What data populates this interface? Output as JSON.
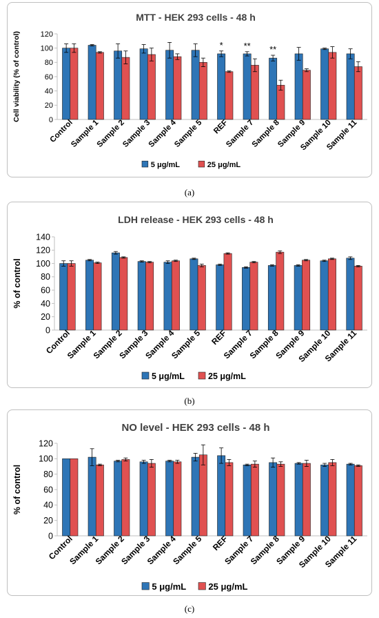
{
  "colors": {
    "series1": "#2e75b6",
    "series2": "#e05151",
    "axis": "#bfbfbf",
    "grid": "#d9d9d9"
  },
  "captions": [
    "(a)",
    "(b)",
    "(c)"
  ],
  "chart_data": [
    {
      "type": "bar",
      "title": "MTT - HEK 293 cells - 48 h",
      "xlabel": "",
      "ylabel": "Cell viability (% of control)",
      "ylim": [
        0,
        120
      ],
      "yticks": [
        0,
        20,
        40,
        60,
        80,
        100,
        120
      ],
      "grid": false,
      "legend_position": "bottom",
      "categories": [
        "Control",
        "Sample 1",
        "Sample 2",
        "Sample 3",
        "Sample 4",
        "Sample 5",
        "REF",
        "Sample 7",
        "Sample 8",
        "Sample 9",
        "Sample 10",
        "Sample 11"
      ],
      "series": [
        {
          "name": "5 μg/mL",
          "values": [
            100,
            104,
            96,
            99,
            97,
            97,
            92,
            92,
            86,
            92,
            99,
            92
          ],
          "errors": [
            6,
            1,
            10,
            6,
            11,
            9,
            4,
            3,
            4,
            9,
            1,
            7
          ]
        },
        {
          "name": "25 μg/mL",
          "values": [
            100,
            94,
            87,
            91,
            88,
            80,
            67,
            76,
            48,
            69,
            94,
            74
          ],
          "errors": [
            6,
            1,
            9,
            9,
            4,
            6,
            1,
            9,
            7,
            2,
            8,
            7
          ]
        }
      ],
      "annotations": [
        {
          "category": "REF",
          "text": "*"
        },
        {
          "category": "Sample 7",
          "text": "**"
        },
        {
          "category": "Sample 8",
          "text": "**"
        }
      ]
    },
    {
      "type": "bar",
      "title": "LDH release - HEK 293 cells - 48 h",
      "xlabel": "",
      "ylabel": "% of control",
      "ylim": [
        0,
        140
      ],
      "yticks": [
        0,
        20,
        40,
        60,
        80,
        100,
        120,
        140
      ],
      "grid": false,
      "legend_position": "bottom",
      "categories": [
        "Control",
        "Sample 1",
        "Sample 2",
        "Sample 3",
        "Sample 4",
        "Sample 5",
        "REF",
        "Sample 7",
        "Sample 8",
        "Sample 9",
        "Sample 10",
        "Sample 11"
      ],
      "series": [
        {
          "name": "5 μg/mL",
          "values": [
            100,
            105,
            116,
            103,
            102,
            107,
            98,
            94,
            97,
            97,
            104,
            108
          ],
          "errors": [
            4,
            1,
            2,
            1,
            2,
            1,
            1,
            1,
            1,
            1,
            1,
            2
          ]
        },
        {
          "name": "25 μg/mL",
          "values": [
            100,
            101,
            109,
            102,
            104,
            97,
            115,
            102,
            117,
            105,
            107,
            96
          ],
          "errors": [
            4,
            1,
            1,
            1,
            1,
            2,
            1,
            1,
            2,
            1,
            1,
            1
          ]
        }
      ],
      "annotations": []
    },
    {
      "type": "bar",
      "title": "NO level - HEK 293 cells - 48 h",
      "xlabel": "",
      "ylabel": "% of control",
      "ylim": [
        0,
        120
      ],
      "yticks": [
        0,
        20,
        40,
        60,
        80,
        100,
        120
      ],
      "grid": false,
      "legend_position": "bottom",
      "categories": [
        "Control",
        "Sample 1",
        "Sample 2",
        "Sample 3",
        "Sample 4",
        "Sample 5",
        "REF",
        "Sample 7",
        "Sample 8",
        "Sample 9",
        "Sample 10",
        "Sample 11"
      ],
      "series": [
        {
          "name": "5 μg/mL",
          "values": [
            100,
            102,
            97,
            96,
            97,
            102,
            104,
            92,
            95,
            94,
            92,
            93
          ],
          "errors": [
            0,
            11,
            1,
            2,
            1,
            5,
            10,
            1,
            6,
            1,
            2,
            1
          ]
        },
        {
          "name": "25 μg/mL",
          "values": [
            100,
            92,
            99,
            94,
            96,
            105,
            95,
            93,
            93,
            94,
            95,
            91
          ],
          "errors": [
            0,
            1,
            2,
            5,
            2,
            13,
            4,
            4,
            3,
            4,
            4,
            1
          ]
        }
      ],
      "annotations": []
    }
  ]
}
